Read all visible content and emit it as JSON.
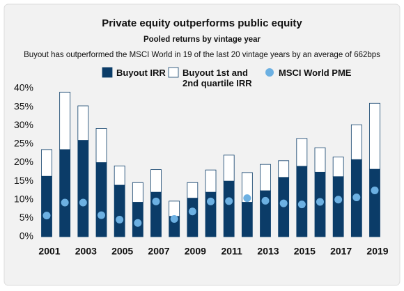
{
  "chart_data": {
    "type": "bar",
    "title": "Private equity outperforms public equity",
    "subtitle": "Pooled returns by vintage year",
    "description": "Buyout has outperformed the MSCI World in 19 of the last 20 vintage years by an average of 662bps",
    "categories": [
      "2001",
      null,
      "2003",
      null,
      "2005",
      null,
      "2007",
      null,
      "2009",
      null,
      "2011",
      null,
      "2013",
      null,
      "2015",
      null,
      "2017",
      null,
      "2019"
    ],
    "series": [
      {
        "name": "Buyout IRR",
        "color": "#0b3c68",
        "stack": true,
        "values": [
          16.3,
          23.5,
          26,
          20,
          13.9,
          9.3,
          12,
          5.5,
          10.4,
          12,
          15,
          9.3,
          12.4,
          16,
          19,
          17.4,
          16.2,
          20.8,
          18.2
        ]
      },
      {
        "name": "Buyout 1st and 2nd quartile IRR",
        "color": "#ffffff",
        "stack": true,
        "values": [
          7.2,
          15.5,
          9.3,
          9.2,
          5.2,
          5.3,
          6.1,
          4.1,
          4.2,
          6,
          7,
          8,
          7.1,
          4.5,
          7.5,
          6.6,
          5.3,
          9.4,
          17.8
        ]
      },
      {
        "name": "MSCI World PME",
        "color": "#6cb0e2",
        "marker": "dot",
        "values": [
          5.7,
          9.2,
          9.2,
          5.8,
          4.6,
          3.7,
          9.5,
          4.8,
          6.8,
          9.5,
          9.6,
          10.4,
          9.7,
          9,
          8.7,
          9.4,
          10,
          10.6,
          12.5
        ]
      }
    ],
    "ylim": [
      0,
      40
    ],
    "yticks": [
      {
        "value": 0,
        "label": "0%"
      },
      {
        "value": 5,
        "label": "5%"
      },
      {
        "value": 10,
        "label": "10%"
      },
      {
        "value": 15,
        "label": "15%"
      },
      {
        "value": 20,
        "label": "20%"
      },
      {
        "value": 25,
        "label": "25%"
      },
      {
        "value": 30,
        "label": "30%"
      },
      {
        "value": 35,
        "label": "35%"
      },
      {
        "value": 40,
        "label": "40%"
      }
    ],
    "grid": false
  }
}
